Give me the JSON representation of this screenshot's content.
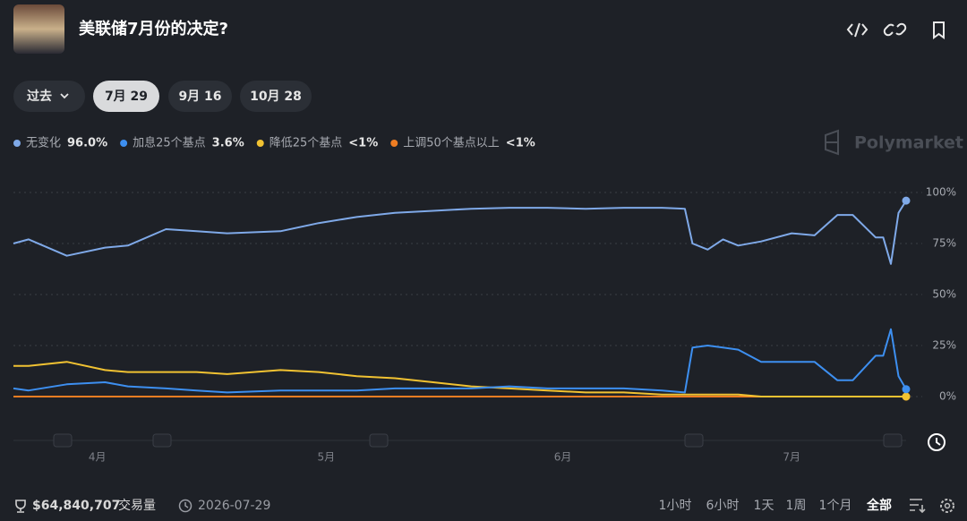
{
  "header": {
    "title": "美联储7月份的决定?"
  },
  "tabs": [
    "过去",
    "7月 29",
    "9月 16",
    "10月 28"
  ],
  "selected_tab": 1,
  "watermark": "Polymarket",
  "chart_data": {
    "type": "line",
    "x": [
      80,
      82,
      87,
      92,
      95,
      100,
      104,
      108,
      115,
      120,
      125,
      130,
      135,
      140,
      145,
      150,
      155,
      160,
      165,
      168,
      169,
      171,
      173,
      175,
      178,
      182,
      185,
      188,
      190,
      193,
      194,
      195,
      196,
      197
    ],
    "xlim": [
      80,
      197
    ],
    "xticks": [
      {
        "value": 91,
        "label": "4月"
      },
      {
        "value": 121,
        "label": "5月"
      },
      {
        "value": 152,
        "label": "6月"
      },
      {
        "value": 182,
        "label": "7月"
      }
    ],
    "ylim": [
      0,
      100
    ],
    "yticks": [
      {
        "value": 100,
        "label": "100%"
      },
      {
        "value": 75,
        "label": "75%"
      },
      {
        "value": 50,
        "label": "50%"
      },
      {
        "value": 25,
        "label": "25%"
      },
      {
        "value": 0,
        "label": "0%"
      }
    ],
    "grid": true,
    "series": [
      {
        "name": "无变化",
        "current": "96.0%",
        "color": "#7fa9e8",
        "values": [
          75,
          77,
          69,
          73,
          74,
          82,
          81,
          80,
          81,
          85,
          88,
          90,
          91,
          92,
          92.5,
          92.5,
          92,
          92.5,
          92.5,
          92,
          75,
          72,
          77,
          74,
          76,
          80,
          79,
          89,
          89,
          78,
          78,
          65,
          90,
          96
        ]
      },
      {
        "name": "加息25个基点",
        "current": "3.6%",
        "color": "#3d8ff0",
        "values": [
          4,
          3,
          6,
          7,
          5,
          4,
          3,
          2,
          3,
          3,
          3,
          4,
          4,
          4,
          5,
          4,
          4,
          4,
          3,
          2,
          24,
          25,
          24,
          23,
          17,
          17,
          17,
          8,
          8,
          20,
          20,
          33,
          10,
          3.6
        ]
      },
      {
        "name": "降低25个基点",
        "current": "<1%",
        "color": "#f1c232",
        "values": [
          15,
          15,
          17,
          13,
          12,
          12,
          12,
          11,
          13,
          12,
          10,
          9,
          7,
          5,
          4,
          3,
          2,
          2,
          1,
          1,
          1,
          1,
          1,
          1,
          0,
          0,
          0,
          0,
          0,
          0,
          0,
          0,
          0,
          0
        ]
      },
      {
        "name": "上调50个基点以上",
        "current": "<1%",
        "color": "#ef7d22",
        "values": [
          0,
          0,
          0,
          0,
          0,
          0,
          0,
          0,
          0,
          0,
          0,
          0,
          0,
          0,
          0,
          0,
          0,
          0,
          0,
          0,
          0,
          0,
          0,
          0,
          0,
          0,
          0,
          0,
          0,
          0,
          0,
          0,
          0,
          0
        ]
      }
    ]
  },
  "footer": {
    "volume": "$64,840,707",
    "volume_label": "交易量",
    "date": "2026-07-29",
    "ranges": [
      "1小时",
      "6小时",
      "1天",
      "1周",
      "1个月",
      "全部"
    ],
    "selected_range": 5
  }
}
